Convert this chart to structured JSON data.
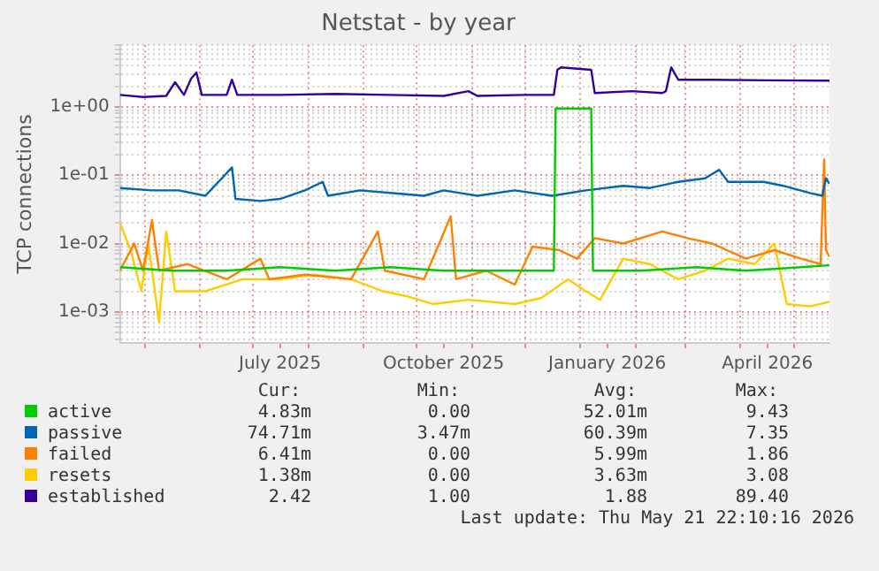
{
  "chart_data": {
    "type": "line",
    "title": "Netstat - by year",
    "ylabel": "TCP connections",
    "log": "y",
    "grid": true,
    "legend": "bottom",
    "marker": "none",
    "line_style": "solid",
    "xlim": [
      "2025-04-17",
      "2026-05-21"
    ],
    "xticks": [
      {
        "value": "2025-05-01",
        "label": null
      },
      {
        "value": "2025-06-01",
        "label": null
      },
      {
        "value": "2025-07-01",
        "label": null
      },
      {
        "value": "2025-07-16",
        "label": "July 2025"
      },
      {
        "value": "2025-08-01",
        "label": null
      },
      {
        "value": "2025-09-01",
        "label": null
      },
      {
        "value": "2025-10-01",
        "label": null
      },
      {
        "value": "2025-10-16",
        "label": "October 2025"
      },
      {
        "value": "2025-11-01",
        "label": null
      },
      {
        "value": "2025-12-01",
        "label": null
      },
      {
        "value": "2026-01-01",
        "label": null
      },
      {
        "value": "2026-01-16",
        "label": "January 2026"
      },
      {
        "value": "2026-02-01",
        "label": null
      },
      {
        "value": "2026-03-01",
        "label": null
      },
      {
        "value": "2026-04-01",
        "label": null
      },
      {
        "value": "2026-04-16",
        "label": "April 2026"
      },
      {
        "value": "2026-05-01",
        "label": null
      }
    ],
    "ylim": [
      0.00035,
      8
    ],
    "yticks": [
      {
        "value": 0.0004,
        "label": null
      },
      {
        "value": 0.0005,
        "label": null
      },
      {
        "value": 0.0006,
        "label": null
      },
      {
        "value": 0.0007,
        "label": null
      },
      {
        "value": 0.0008,
        "label": null
      },
      {
        "value": 0.0009,
        "label": null
      },
      {
        "value": 0.001,
        "label": "1e-03"
      },
      {
        "value": 0.002,
        "label": null
      },
      {
        "value": 0.003,
        "label": null
      },
      {
        "value": 0.004,
        "label": null
      },
      {
        "value": 0.005,
        "label": null
      },
      {
        "value": 0.006,
        "label": null
      },
      {
        "value": 0.007,
        "label": null
      },
      {
        "value": 0.008,
        "label": null
      },
      {
        "value": 0.009,
        "label": null
      },
      {
        "value": 0.01,
        "label": "1e-02"
      },
      {
        "value": 0.02,
        "label": null
      },
      {
        "value": 0.03,
        "label": null
      },
      {
        "value": 0.04,
        "label": null
      },
      {
        "value": 0.05,
        "label": null
      },
      {
        "value": 0.06,
        "label": null
      },
      {
        "value": 0.07,
        "label": null
      },
      {
        "value": 0.08,
        "label": null
      },
      {
        "value": 0.09,
        "label": null
      },
      {
        "value": 0.1,
        "label": "1e-01"
      },
      {
        "value": 0.2,
        "label": null
      },
      {
        "value": 0.3,
        "label": null
      },
      {
        "value": 0.4,
        "label": null
      },
      {
        "value": 0.5,
        "label": null
      },
      {
        "value": 0.6,
        "label": null
      },
      {
        "value": 0.7,
        "label": null
      },
      {
        "value": 0.8,
        "label": null
      },
      {
        "value": 0.9,
        "label": null
      },
      {
        "value": 1,
        "label": "1e+00"
      },
      {
        "value": 2,
        "label": null
      },
      {
        "value": 3,
        "label": null
      },
      {
        "value": 4,
        "label": null
      },
      {
        "value": 5,
        "label": null
      },
      {
        "value": 6,
        "label": null
      },
      {
        "value": 7,
        "label": null
      },
      {
        "value": 8,
        "label": null
      }
    ],
    "series": [
      {
        "name": "active",
        "color": "#00cc00",
        "x": [
          "2025-04-17",
          "2025-05-16",
          "2025-06-16",
          "2025-07-16",
          "2025-08-16",
          "2025-09-16",
          "2025-10-16",
          "2025-11-16",
          "2025-12-17",
          "2025-12-18",
          "2026-01-07",
          "2026-01-08",
          "2026-02-04",
          "2026-03-07",
          "2026-04-04",
          "2026-05-05",
          "2026-05-21"
        ],
        "values": [
          0.0045,
          0.004,
          0.004,
          0.0045,
          0.004,
          0.0045,
          0.004,
          0.004,
          0.004,
          0.95,
          0.95,
          0.004,
          0.004,
          0.0045,
          0.004,
          0.0045,
          0.0048
        ]
      },
      {
        "name": "passive",
        "color": "#0066b3",
        "x": [
          "2025-04-17",
          "2025-05-05",
          "2025-05-20",
          "2025-06-04",
          "2025-06-19",
          "2025-06-21",
          "2025-07-05",
          "2025-07-16",
          "2025-07-30",
          "2025-08-09",
          "2025-08-12",
          "2025-08-30",
          "2025-09-16",
          "2025-10-05",
          "2025-10-16",
          "2025-11-04",
          "2025-11-25",
          "2025-12-16",
          "2026-01-04",
          "2026-01-25",
          "2026-02-09",
          "2026-02-25",
          "2026-03-12",
          "2026-03-20",
          "2026-03-25",
          "2026-04-14",
          "2026-04-25",
          "2026-05-10",
          "2026-05-17",
          "2026-05-19",
          "2026-05-21"
        ],
        "values": [
          0.065,
          0.06,
          0.06,
          0.05,
          0.13,
          0.045,
          0.042,
          0.045,
          0.06,
          0.08,
          0.05,
          0.06,
          0.055,
          0.05,
          0.06,
          0.05,
          0.06,
          0.05,
          0.06,
          0.07,
          0.065,
          0.08,
          0.09,
          0.12,
          0.08,
          0.08,
          0.07,
          0.055,
          0.05,
          0.09,
          0.075
        ]
      },
      {
        "name": "failed",
        "color": "#ff8000",
        "x": [
          "2025-04-17",
          "2025-04-25",
          "2025-04-30",
          "2025-05-05",
          "2025-05-09",
          "2025-05-25",
          "2025-06-16",
          "2025-07-05",
          "2025-07-10",
          "2025-07-30",
          "2025-08-25",
          "2025-09-09",
          "2025-09-13",
          "2025-10-05",
          "2025-10-20",
          "2025-10-23",
          "2025-11-09",
          "2025-11-25",
          "2025-12-05",
          "2025-12-20",
          "2025-12-30",
          "2026-01-09",
          "2026-01-25",
          "2026-02-16",
          "2026-03-02",
          "2026-03-16",
          "2026-04-04",
          "2026-04-20",
          "2026-05-05",
          "2026-05-16",
          "2026-05-18",
          "2026-05-19",
          "2026-05-21"
        ],
        "values": [
          0.004,
          0.01,
          0.004,
          0.022,
          0.004,
          0.005,
          0.003,
          0.006,
          0.003,
          0.0035,
          0.003,
          0.015,
          0.004,
          0.003,
          0.025,
          0.003,
          0.004,
          0.0025,
          0.009,
          0.008,
          0.006,
          0.012,
          0.01,
          0.015,
          0.012,
          0.01,
          0.006,
          0.008,
          0.006,
          0.005,
          0.17,
          0.008,
          0.0064
        ]
      },
      {
        "name": "resets",
        "color": "#ffcc00",
        "x": [
          "2025-04-17",
          "2025-04-23",
          "2025-04-29",
          "2025-05-03",
          "2025-05-09",
          "2025-05-13",
          "2025-05-18",
          "2025-06-04",
          "2025-06-25",
          "2025-07-16",
          "2025-08-04",
          "2025-08-25",
          "2025-09-12",
          "2025-09-25",
          "2025-10-10",
          "2025-10-30",
          "2025-11-25",
          "2025-12-10",
          "2025-12-25",
          "2026-01-04",
          "2026-01-12",
          "2026-01-25",
          "2026-02-09",
          "2026-02-25",
          "2026-03-12",
          "2026-03-25",
          "2026-04-09",
          "2026-04-20",
          "2026-04-27",
          "2026-05-10",
          "2026-05-21"
        ],
        "values": [
          0.02,
          0.008,
          0.002,
          0.01,
          0.0007,
          0.015,
          0.002,
          0.002,
          0.003,
          0.003,
          0.0035,
          0.003,
          0.002,
          0.0017,
          0.0013,
          0.0015,
          0.0013,
          0.0016,
          0.003,
          0.002,
          0.0015,
          0.006,
          0.005,
          0.003,
          0.004,
          0.006,
          0.005,
          0.01,
          0.0013,
          0.0012,
          0.0014
        ]
      },
      {
        "name": "established",
        "color": "#330099",
        "x": [
          "2025-04-17",
          "2025-04-30",
          "2025-05-13",
          "2025-05-18",
          "2025-05-23",
          "2025-05-27",
          "2025-05-30",
          "2025-06-02",
          "2025-06-16",
          "2025-06-19",
          "2025-06-22",
          "2025-07-16",
          "2025-08-16",
          "2025-09-16",
          "2025-10-16",
          "2025-10-30",
          "2025-11-04",
          "2025-11-30",
          "2025-12-17",
          "2025-12-19",
          "2025-12-21",
          "2026-01-07",
          "2026-01-09",
          "2026-01-30",
          "2026-02-16",
          "2026-02-18",
          "2026-02-21",
          "2026-02-25",
          "2026-03-16",
          "2026-04-16",
          "2026-05-21"
        ],
        "values": [
          1.5,
          1.4,
          1.45,
          2.3,
          1.5,
          2.6,
          3.2,
          1.5,
          1.5,
          2.5,
          1.5,
          1.5,
          1.55,
          1.5,
          1.45,
          1.7,
          1.45,
          1.5,
          1.5,
          3.5,
          3.8,
          3.5,
          1.6,
          1.7,
          1.6,
          1.7,
          3.8,
          2.5,
          2.5,
          2.45,
          2.42
        ]
      }
    ],
    "annotations": [
      "Cur:",
      "Min:",
      "Avg:",
      "Max:",
      "4.83m",
      "0.00",
      "52.01m",
      "9.43",
      "74.71m",
      "3.47m",
      "60.39m",
      "7.35",
      "6.41m",
      "0.00",
      "5.99m",
      "1.86",
      "1.38m",
      "0.00",
      "3.63m",
      "3.08",
      "2.42",
      "1.00",
      "1.88",
      "89.40",
      "Last update: Thu May 21 22:10:16 2026"
    ]
  }
}
